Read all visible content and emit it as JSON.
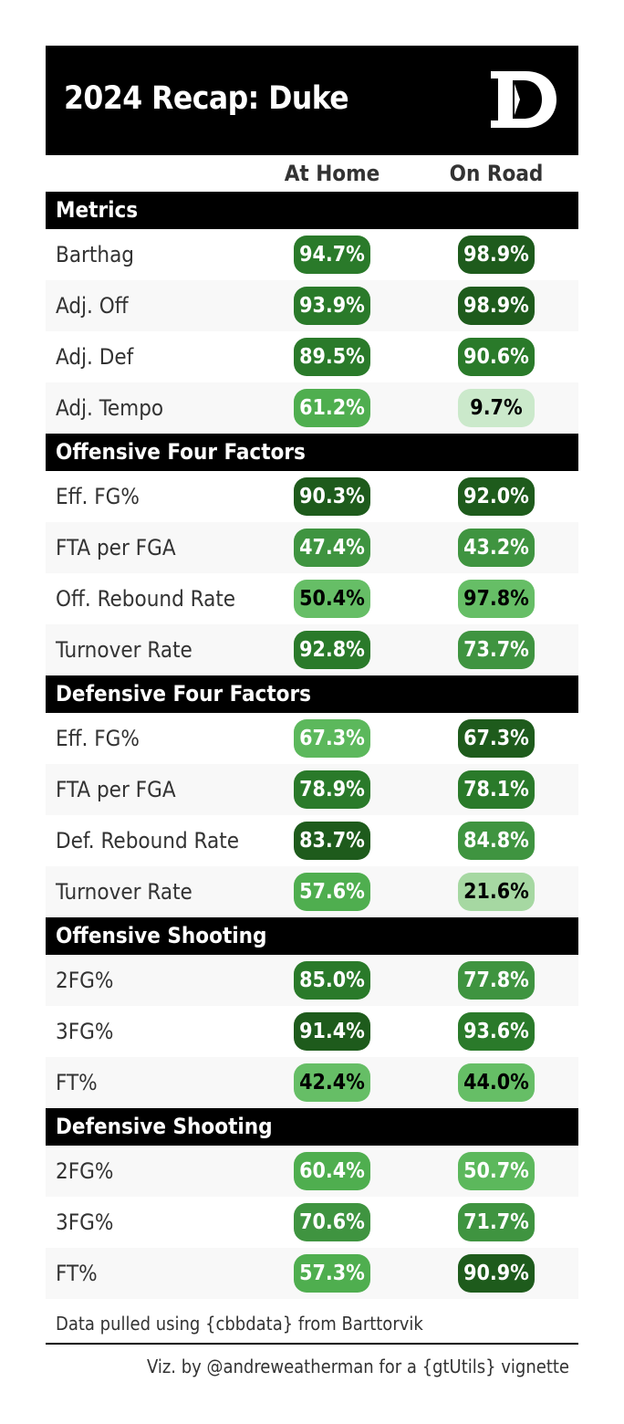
{
  "title": "2024 Recap: Duke",
  "logo": {
    "icon": "duke-d-logo",
    "letter": "D"
  },
  "columns": {
    "home": "At Home",
    "road": "On Road"
  },
  "colors": {
    "darkest": "#1e5b1c",
    "dark": "#2a7a2a",
    "medium": "#3f9440",
    "medium_light": "#4fae4f",
    "light": "#66be66",
    "pale": "#a6d8a2",
    "palest": "#cbe9cb"
  },
  "sections": [
    {
      "name": "Metrics",
      "rows": [
        {
          "label": "Barthag",
          "home": {
            "value": "94.7%",
            "color": "#2a7a2a",
            "text": "#ffffff"
          },
          "road": {
            "value": "98.9%",
            "color": "#1e5b1c",
            "text": "#ffffff"
          }
        },
        {
          "label": "Adj. Off",
          "home": {
            "value": "93.9%",
            "color": "#2a7a2a",
            "text": "#ffffff"
          },
          "road": {
            "value": "98.9%",
            "color": "#1e5b1c",
            "text": "#ffffff"
          }
        },
        {
          "label": "Adj. Def",
          "home": {
            "value": "89.5%",
            "color": "#2a7a2a",
            "text": "#ffffff"
          },
          "road": {
            "value": "90.6%",
            "color": "#2a7a2a",
            "text": "#ffffff"
          }
        },
        {
          "label": "Adj. Tempo",
          "home": {
            "value": "61.2%",
            "color": "#4fae4f",
            "text": "#ffffff"
          },
          "road": {
            "value": "9.7%",
            "color": "#cbe9cb",
            "text": "#000000"
          }
        }
      ]
    },
    {
      "name": "Offensive Four Factors",
      "rows": [
        {
          "label": "Eff. FG%",
          "home": {
            "value": "90.3%",
            "color": "#1e5b1c",
            "text": "#ffffff"
          },
          "road": {
            "value": "92.0%",
            "color": "#1e5b1c",
            "text": "#ffffff"
          }
        },
        {
          "label": "FTA per FGA",
          "home": {
            "value": "47.4%",
            "color": "#3f9440",
            "text": "#ffffff"
          },
          "road": {
            "value": "43.2%",
            "color": "#3f9440",
            "text": "#ffffff"
          }
        },
        {
          "label": "Off. Rebound Rate",
          "home": {
            "value": "50.4%",
            "color": "#66be66",
            "text": "#000000"
          },
          "road": {
            "value": "97.8%",
            "color": "#66be66",
            "text": "#000000"
          }
        },
        {
          "label": "Turnover Rate",
          "home": {
            "value": "92.8%",
            "color": "#2a7a2a",
            "text": "#ffffff"
          },
          "road": {
            "value": "73.7%",
            "color": "#3f9440",
            "text": "#ffffff"
          }
        }
      ]
    },
    {
      "name": "Defensive Four Factors",
      "rows": [
        {
          "label": "Eff. FG%",
          "home": {
            "value": "67.3%",
            "color": "#5cb85c",
            "text": "#ffffff"
          },
          "road": {
            "value": "67.3%",
            "color": "#1e5b1c",
            "text": "#ffffff"
          }
        },
        {
          "label": "FTA per FGA",
          "home": {
            "value": "78.9%",
            "color": "#2a7a2a",
            "text": "#ffffff"
          },
          "road": {
            "value": "78.1%",
            "color": "#2a7a2a",
            "text": "#ffffff"
          }
        },
        {
          "label": "Def. Rebound Rate",
          "home": {
            "value": "83.7%",
            "color": "#1e5b1c",
            "text": "#ffffff"
          },
          "road": {
            "value": "84.8%",
            "color": "#3f9440",
            "text": "#ffffff"
          }
        },
        {
          "label": "Turnover Rate",
          "home": {
            "value": "57.6%",
            "color": "#4fae4f",
            "text": "#ffffff"
          },
          "road": {
            "value": "21.6%",
            "color": "#a6d8a2",
            "text": "#000000"
          }
        }
      ]
    },
    {
      "name": "Offensive Shooting",
      "rows": [
        {
          "label": "2FG%",
          "home": {
            "value": "85.0%",
            "color": "#2a7a2a",
            "text": "#ffffff"
          },
          "road": {
            "value": "77.8%",
            "color": "#3f9440",
            "text": "#ffffff"
          }
        },
        {
          "label": "3FG%",
          "home": {
            "value": "91.4%",
            "color": "#1e5b1c",
            "text": "#ffffff"
          },
          "road": {
            "value": "93.6%",
            "color": "#2a7a2a",
            "text": "#ffffff"
          }
        },
        {
          "label": "FT%",
          "home": {
            "value": "42.4%",
            "color": "#66be66",
            "text": "#000000"
          },
          "road": {
            "value": "44.0%",
            "color": "#66be66",
            "text": "#000000"
          }
        }
      ]
    },
    {
      "name": "Defensive Shooting",
      "rows": [
        {
          "label": "2FG%",
          "home": {
            "value": "60.4%",
            "color": "#4fae4f",
            "text": "#ffffff"
          },
          "road": {
            "value": "50.7%",
            "color": "#5cb85c",
            "text": "#ffffff"
          }
        },
        {
          "label": "3FG%",
          "home": {
            "value": "70.6%",
            "color": "#3f9440",
            "text": "#ffffff"
          },
          "road": {
            "value": "71.7%",
            "color": "#3f9440",
            "text": "#ffffff"
          }
        },
        {
          "label": "FT%",
          "home": {
            "value": "57.3%",
            "color": "#4fae4f",
            "text": "#ffffff"
          },
          "road": {
            "value": "90.9%",
            "color": "#1e5b1c",
            "text": "#ffffff"
          }
        }
      ]
    }
  ],
  "source_note": "Data pulled using {cbbdata} from Barttorvik",
  "credit": "Viz. by @andreweatherman for a {gtUtils} vignette"
}
